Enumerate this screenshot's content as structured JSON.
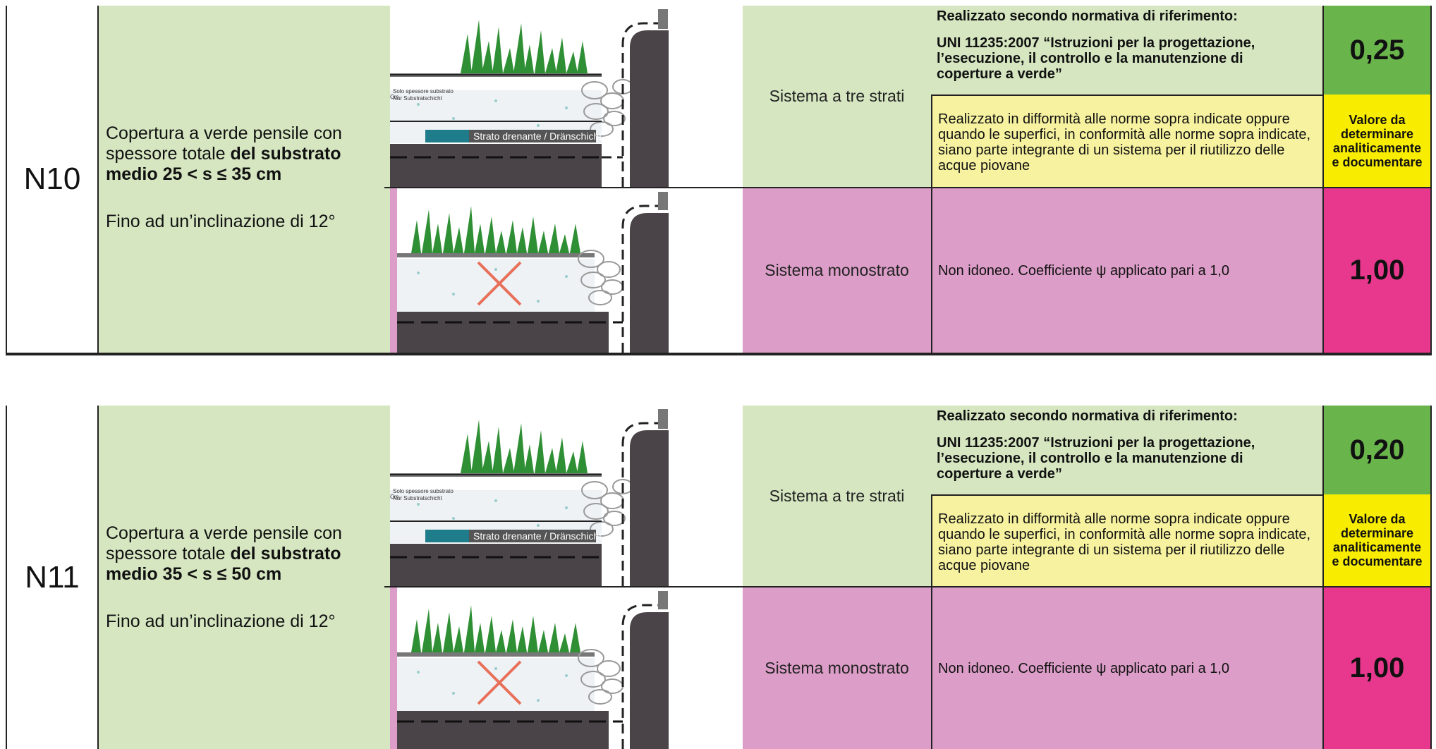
{
  "rows": [
    {
      "code": "N10",
      "desc_line1": "Copertura a verde pensile con spessore totale ",
      "desc_bold": "del substrato medio  25 < s ≤ 35 cm",
      "desc_line2": "Fino ad un’inclinazione di 12°",
      "system_a": "Sistema a tre strati",
      "norm_title": "Realizzato secondo normativa di riferimento:",
      "norm_text": "UNI 11235:2007  “Istruzioni per la progettazione, l’esecuzione, il controllo e la manutenzione di coperture a verde”",
      "alt_text": "Realizzato in difformità alle norme sopra indicate oppure quando le superfici, in conformità alle norme sopra indicate, siano parte integrante di un sistema per il riutilizzo delle acque piovane",
      "value_a": "0,25",
      "value_alt": "Valore da determinare analiticamente e documentare",
      "system_b": "Sistema monostrato",
      "b_text": "Non idoneo. Coefficiente  ψ applicato pari a 1,0",
      "value_b": "1,00",
      "img_label1": "Solo spessore substrato",
      "img_label2": "Nur Substratschicht",
      "img_label3": "Strato drenante / Dränschicht",
      "img_cm": "Cm"
    },
    {
      "code": "N11",
      "desc_line1": "Copertura a verde pensile con spessore totale ",
      "desc_bold": "del substrato medio  35 < s ≤ 50 cm",
      "desc_line2": "Fino ad un’inclinazione di 12°",
      "system_a": "Sistema a tre strati",
      "norm_title": "Realizzato secondo normativa di riferimento:",
      "norm_text": "UNI 11235:2007  “Istruzioni per la progettazione, l’esecuzione, il controllo e la manutenzione di coperture a verde”",
      "alt_text": "Realizzato in difformità alle norme sopra indicate oppure quando le superfici, in conformità alle norme sopra indicate, siano parte integrante di un sistema per il riutilizzo delle acque piovane",
      "value_a": "0,20",
      "value_alt": "Valore da determinare analiticamente e documentare",
      "system_b": "Sistema monostrato",
      "b_text": "Non idoneo. Coefficiente  ψ applicato pari a 1,0",
      "value_b": "1,00",
      "img_label1": "Solo spessore substrato",
      "img_label2": "Nur Substratschicht",
      "img_label3": "Strato drenante / Dränschicht",
      "img_cm": "Cm"
    }
  ]
}
